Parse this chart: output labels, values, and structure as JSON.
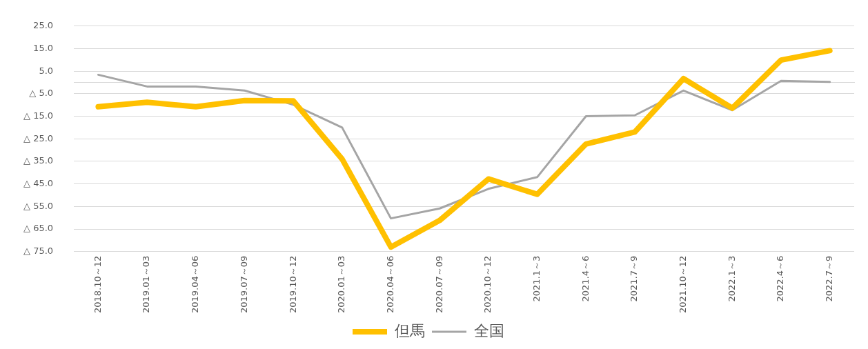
{
  "chart_data": {
    "type": "line",
    "categories": [
      "2018.10～12",
      "2019.01～03",
      "2019.04～06",
      "2019.07～09",
      "2019.10～12",
      "2020.01～03",
      "2020.04～06",
      "2020.07～09",
      "2020.10～12",
      "2021.1～3",
      "2021.4～6",
      "2021.7～9",
      "2021.10～12",
      "2022.1～3",
      "2022.4～6",
      "2022.7～9"
    ],
    "series": [
      {
        "name": "但馬",
        "color": "#ffc000",
        "values": [
          -10.8,
          -8.8,
          -10.8,
          -8,
          -8.2,
          -34,
          -73,
          -61.2,
          -42.8,
          -49.6,
          -27.3,
          -22,
          1.7,
          -11.4,
          9.9,
          14.1
        ]
      },
      {
        "name": "全国",
        "color": "#a5a5a5",
        "values": [
          3.4,
          -1.8,
          -1.8,
          -3.6,
          -9.9,
          -20,
          -60.3,
          -55.9,
          -47.2,
          -42,
          -15,
          -14.6,
          -3.6,
          -12.3,
          0.7,
          0.2
        ]
      }
    ],
    "ylim": [
      -75,
      25
    ],
    "yticks": [
      {
        "value": 25,
        "label": "25.0"
      },
      {
        "value": 15,
        "label": "15.0"
      },
      {
        "value": 5,
        "label": "5.0"
      },
      {
        "value": -5,
        "label": "△ 5.0"
      },
      {
        "value": -15,
        "label": "△ 15.0"
      },
      {
        "value": -25,
        "label": "△ 25.0"
      },
      {
        "value": -35,
        "label": "△ 35.0"
      },
      {
        "value": -45,
        "label": "△ 45.0"
      },
      {
        "value": -55,
        "label": "△ 55.0"
      },
      {
        "value": -65,
        "label": "△ 65.0"
      },
      {
        "value": -75,
        "label": "△ 75.0"
      }
    ],
    "grid": "y",
    "legend": "bottom"
  }
}
